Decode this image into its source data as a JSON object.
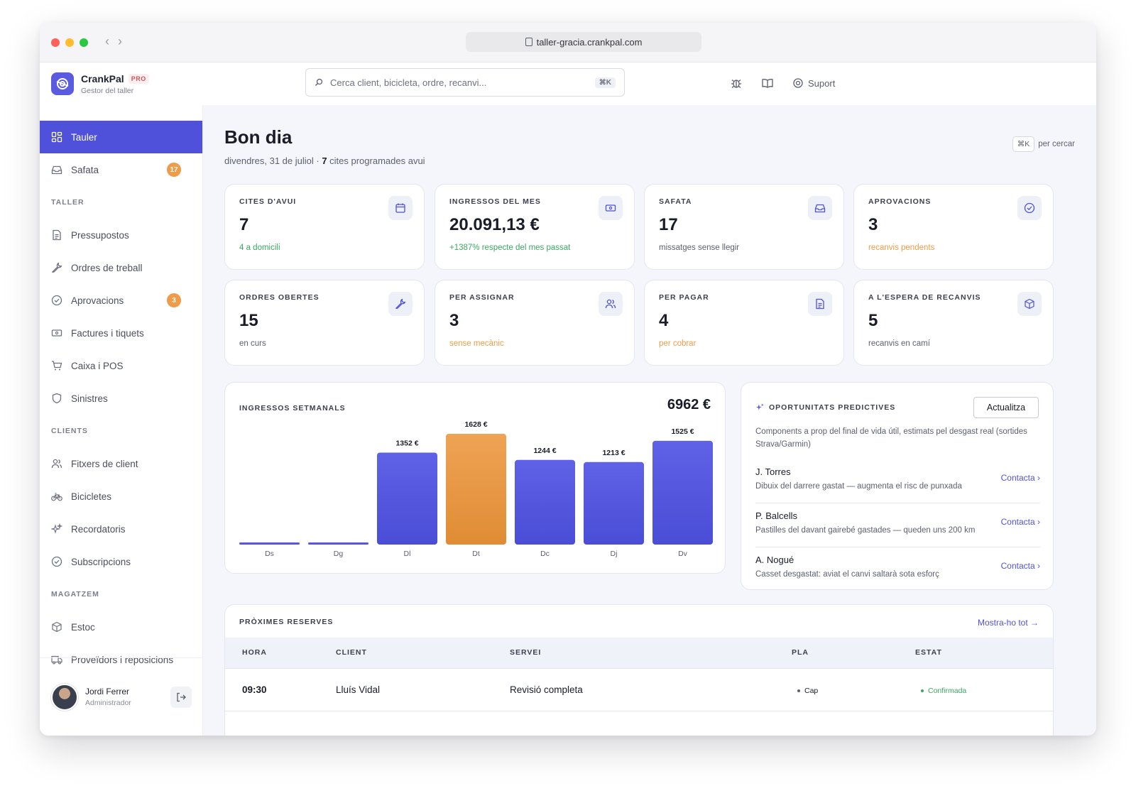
{
  "browser": {
    "url": "taller-gracia.crankpal.com"
  },
  "brand": {
    "name": "CrankPal",
    "badge": "PRO",
    "subtitle": "Gestor del taller",
    "color": "#4f51db"
  },
  "search": {
    "placeholder": "Cerca client, bicicleta, ordre, recanvi...",
    "shortcut": "⌘K"
  },
  "header": {
    "support_label": "Suport"
  },
  "sidebar": {
    "top_items": [
      {
        "label": "Tauler",
        "icon": "dashboard-icon",
        "active": true
      },
      {
        "label": "Safata",
        "icon": "inbox-icon",
        "badge": "17"
      }
    ],
    "sections": [
      {
        "title": "TALLER",
        "items": [
          {
            "label": "Pressupostos",
            "icon": "document-icon"
          },
          {
            "label": "Ordres de treball",
            "icon": "wrench-icon"
          },
          {
            "label": "Aprovacions",
            "icon": "check-circle-icon",
            "badge": "3"
          },
          {
            "label": "Factures i tiquets",
            "icon": "money-icon"
          },
          {
            "label": "Caixa i POS",
            "icon": "cart-icon"
          },
          {
            "label": "Sinistres",
            "icon": "shield-icon"
          }
        ]
      },
      {
        "title": "CLIENTS",
        "items": [
          {
            "label": "Fitxers de client",
            "icon": "users-icon"
          },
          {
            "label": "Bicicletes",
            "icon": "bicycle-icon"
          },
          {
            "label": "Recordatoris",
            "icon": "sparkle-icon"
          },
          {
            "label": "Subscripcions",
            "icon": "check-circle-icon"
          }
        ]
      },
      {
        "title": "MAGATZEM",
        "items": [
          {
            "label": "Estoc",
            "icon": "box-icon"
          },
          {
            "label": "Proveïdors i reposicions",
            "icon": "truck-icon"
          }
        ]
      }
    ],
    "user": {
      "name": "Jordi Ferrer",
      "role": "Administrador"
    }
  },
  "page": {
    "title": "Bon dia",
    "subtitle_prefix": "divendres, 31 de juliol · ",
    "subtitle_count": "7",
    "subtitle_suffix": " cites programades avui",
    "hint_key": "⌘K",
    "hint_text": "per cercar"
  },
  "stats": [
    {
      "label": "CITES D'AVUI",
      "value": "7",
      "note": "4 a domicili",
      "tone": "green",
      "icon": "calendar-icon"
    },
    {
      "label": "INGRESSOS DEL MES",
      "value": "20.091,13 €",
      "note": "+1387% respecte del mes passat",
      "tone": "green",
      "icon": "money-icon"
    },
    {
      "label": "SAFATA",
      "value": "17",
      "note": "missatges sense llegir",
      "tone": "gray",
      "icon": "inbox-icon"
    },
    {
      "label": "APROVACIONS",
      "value": "3",
      "note": "recanvis pendents",
      "tone": "orange",
      "icon": "check-circle-icon"
    },
    {
      "label": "ORDRES OBERTES",
      "value": "15",
      "note": "en curs",
      "tone": "gray",
      "icon": "wrench-icon"
    },
    {
      "label": "PER ASSIGNAR",
      "value": "3",
      "note": "sense mecànic",
      "tone": "orange",
      "icon": "users-icon"
    },
    {
      "label": "PER PAGAR",
      "value": "4",
      "note": "per cobrar",
      "tone": "orange",
      "icon": "document-icon"
    },
    {
      "label": "A L'ESPERA DE RECANVIS",
      "value": "5",
      "note": "recanvis en camí",
      "tone": "gray",
      "icon": "box-icon"
    }
  ],
  "chart_data": {
    "type": "bar",
    "title": "INGRESSOS SETMANALS",
    "total": "6962 €",
    "categories": [
      "Ds",
      "Dg",
      "Dl",
      "Dt",
      "Dc",
      "Dj",
      "Dv"
    ],
    "values": [
      0,
      0,
      1352,
      1628,
      1244,
      1213,
      1525
    ],
    "data_labels": [
      "",
      "",
      "1352 €",
      "1628 €",
      "1244 €",
      "1213 €",
      "1525 €"
    ],
    "highlight_index": 3,
    "colors": {
      "bar": "#5558e0",
      "highlight": "#ec9a45"
    },
    "ylim": [
      0,
      1628
    ],
    "grid": false
  },
  "predictive": {
    "title": "OPORTUNITATS PREDICTIVES",
    "button": "Actualitza",
    "description": "Components a prop del final de vida útil, estimats pel desgast real (sortides Strava/Garmin)",
    "items": [
      {
        "name": "J. Torres",
        "detail": "Dibuix del darrere gastat — augmenta el risc de punxada",
        "link": "Contacta ›"
      },
      {
        "name": "P. Balcells",
        "detail": "Pastilles del davant gairebé gastades — queden uns 200 km",
        "link": "Contacta ›"
      },
      {
        "name": "A. Nogué",
        "detail": "Casset desgastat: aviat el canvi saltarà sota esforç",
        "link": "Contacta ›"
      }
    ]
  },
  "bookings": {
    "title": "PRÒXIMES RESERVES",
    "link": "Mostra-ho tot →",
    "columns": [
      "HORA",
      "CLIENT",
      "SERVEI",
      "PLA",
      "ESTAT"
    ],
    "rows": [
      {
        "time": "09:30",
        "client": "Lluís Vidal",
        "service": "Revisió completa",
        "plan": "Cap",
        "status": "Confirmada"
      }
    ]
  }
}
